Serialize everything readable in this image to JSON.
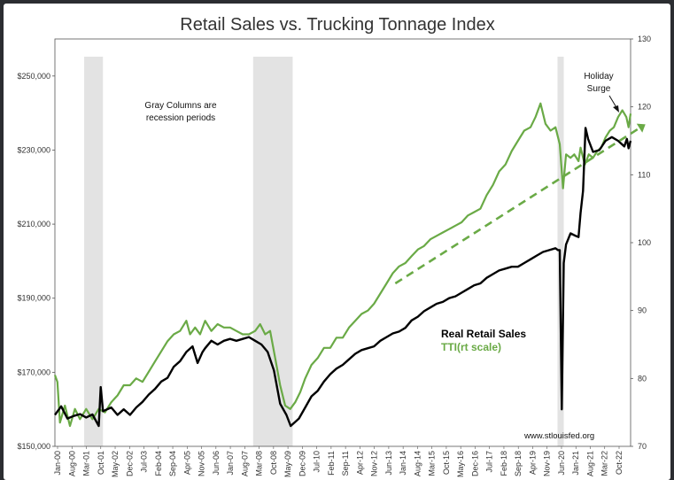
{
  "chart_data": {
    "type": "line",
    "title": "Retail Sales vs. Trucking Tonnage Index",
    "left_axis": {
      "ticks": [
        "$150,000",
        "$170,000",
        "$190,000",
        "$210,000",
        "$230,000",
        "$250,000"
      ],
      "range": [
        150000,
        260000
      ]
    },
    "right_axis": {
      "ticks": [
        "70",
        "80",
        "90",
        "100",
        "110",
        "120",
        "130"
      ],
      "range": [
        70,
        130
      ]
    },
    "x_ticks": [
      "Jan-00",
      "Aug-00",
      "Mar-01",
      "Oct-01",
      "May-02",
      "Dec-02",
      "Jul-03",
      "Feb-04",
      "Sep-04",
      "Apr-05",
      "Nov-05",
      "Jun-06",
      "Jan-07",
      "Aug-07",
      "Mar-08",
      "Oct-08",
      "May-09",
      "Dec-09",
      "Jul-10",
      "Feb-11",
      "Sep-11",
      "Apr-12",
      "Nov-12",
      "Jun-13",
      "Jan-14",
      "Aug-14",
      "Mar-15",
      "Oct-15",
      "May-16",
      "Dec-16",
      "Jul-17",
      "Feb-18",
      "Sep-18",
      "Apr-19",
      "Nov-19",
      "Jun-20",
      "Jan-21",
      "Aug-21",
      "Mar-22",
      "Oct-22"
    ],
    "x_range": [
      2000.0,
      2023.0
    ],
    "recessions": [
      [
        2001.17,
        2001.92
      ],
      [
        2007.92,
        2009.5
      ],
      [
        2020.08,
        2020.33
      ]
    ],
    "series": [
      {
        "name": "Real Retail Sales",
        "axis": "left",
        "color": "#000000",
        "points": [
          [
            2000.0,
            158500
          ],
          [
            2000.25,
            160800
          ],
          [
            2000.5,
            157500
          ],
          [
            2000.75,
            158200
          ],
          [
            2001.0,
            158700
          ],
          [
            2001.25,
            157800
          ],
          [
            2001.5,
            158600
          ],
          [
            2001.75,
            155500
          ],
          [
            2001.83,
            166000
          ],
          [
            2001.92,
            159500
          ],
          [
            2002.25,
            160500
          ],
          [
            2002.5,
            158500
          ],
          [
            2002.75,
            160000
          ],
          [
            2003.0,
            158500
          ],
          [
            2003.25,
            160500
          ],
          [
            2003.5,
            162000
          ],
          [
            2003.75,
            164000
          ],
          [
            2004.0,
            165500
          ],
          [
            2004.25,
            167500
          ],
          [
            2004.5,
            168500
          ],
          [
            2004.75,
            171500
          ],
          [
            2005.0,
            173000
          ],
          [
            2005.25,
            175500
          ],
          [
            2005.5,
            177000
          ],
          [
            2005.7,
            172500
          ],
          [
            2005.9,
            175500
          ],
          [
            2006.0,
            176500
          ],
          [
            2006.25,
            178500
          ],
          [
            2006.5,
            177500
          ],
          [
            2006.75,
            178500
          ],
          [
            2007.0,
            179000
          ],
          [
            2007.25,
            178500
          ],
          [
            2007.5,
            179000
          ],
          [
            2007.75,
            179500
          ],
          [
            2008.0,
            178500
          ],
          [
            2008.25,
            177500
          ],
          [
            2008.5,
            175500
          ],
          [
            2008.75,
            170500
          ],
          [
            2009.0,
            161500
          ],
          [
            2009.25,
            158500
          ],
          [
            2009.42,
            155500
          ],
          [
            2009.75,
            157500
          ],
          [
            2010.0,
            160500
          ],
          [
            2010.25,
            163500
          ],
          [
            2010.5,
            165000
          ],
          [
            2010.75,
            167500
          ],
          [
            2011.0,
            169500
          ],
          [
            2011.25,
            171000
          ],
          [
            2011.5,
            172000
          ],
          [
            2011.75,
            173500
          ],
          [
            2012.0,
            175000
          ],
          [
            2012.25,
            176000
          ],
          [
            2012.5,
            176500
          ],
          [
            2012.75,
            177000
          ],
          [
            2013.0,
            178500
          ],
          [
            2013.25,
            179500
          ],
          [
            2013.5,
            180500
          ],
          [
            2013.75,
            181000
          ],
          [
            2014.0,
            182000
          ],
          [
            2014.25,
            184000
          ],
          [
            2014.5,
            185000
          ],
          [
            2014.75,
            186500
          ],
          [
            2015.0,
            187500
          ],
          [
            2015.25,
            188500
          ],
          [
            2015.5,
            189000
          ],
          [
            2015.75,
            190000
          ],
          [
            2016.0,
            190500
          ],
          [
            2016.25,
            191500
          ],
          [
            2016.5,
            192500
          ],
          [
            2016.75,
            193500
          ],
          [
            2017.0,
            194000
          ],
          [
            2017.25,
            195500
          ],
          [
            2017.5,
            196500
          ],
          [
            2017.75,
            197500
          ],
          [
            2018.0,
            198000
          ],
          [
            2018.25,
            198500
          ],
          [
            2018.5,
            198500
          ],
          [
            2018.75,
            199500
          ],
          [
            2019.0,
            200500
          ],
          [
            2019.25,
            201500
          ],
          [
            2019.5,
            202500
          ],
          [
            2019.75,
            203000
          ],
          [
            2020.0,
            203500
          ],
          [
            2020.1,
            203000
          ],
          [
            2020.17,
            203000
          ],
          [
            2020.25,
            160000
          ],
          [
            2020.33,
            199500
          ],
          [
            2020.42,
            204500
          ],
          [
            2020.6,
            207500
          ],
          [
            2020.75,
            207000
          ],
          [
            2020.92,
            206500
          ],
          [
            2021.0,
            213000
          ],
          [
            2021.1,
            219000
          ],
          [
            2021.2,
            236000
          ],
          [
            2021.3,
            233000
          ],
          [
            2021.5,
            229500
          ],
          [
            2021.75,
            230000
          ],
          [
            2022.0,
            232500
          ],
          [
            2022.25,
            233500
          ],
          [
            2022.5,
            232500
          ],
          [
            2022.75,
            231000
          ],
          [
            2022.85,
            233000
          ],
          [
            2022.92,
            230500
          ],
          [
            2023.0,
            232500
          ]
        ]
      },
      {
        "name": "TTI(rt scale)",
        "axis": "right",
        "color": "#6aaa46",
        "points": [
          [
            2000.0,
            80.5
          ],
          [
            2000.1,
            79.5
          ],
          [
            2000.2,
            73.5
          ],
          [
            2000.4,
            76.0
          ],
          [
            2000.6,
            73.0
          ],
          [
            2000.8,
            75.5
          ],
          [
            2001.0,
            74.0
          ],
          [
            2001.25,
            75.5
          ],
          [
            2001.5,
            74.0
          ],
          [
            2001.75,
            75.5
          ],
          [
            2002.0,
            75.0
          ],
          [
            2002.25,
            76.5
          ],
          [
            2002.5,
            77.5
          ],
          [
            2002.75,
            79.0
          ],
          [
            2003.0,
            79.0
          ],
          [
            2003.25,
            80.0
          ],
          [
            2003.5,
            79.5
          ],
          [
            2003.75,
            81.0
          ],
          [
            2004.0,
            82.5
          ],
          [
            2004.25,
            84.0
          ],
          [
            2004.5,
            85.5
          ],
          [
            2004.75,
            86.5
          ],
          [
            2005.0,
            87.0
          ],
          [
            2005.25,
            88.5
          ],
          [
            2005.4,
            86.5
          ],
          [
            2005.6,
            87.5
          ],
          [
            2005.8,
            86.5
          ],
          [
            2006.0,
            88.5
          ],
          [
            2006.25,
            87.0
          ],
          [
            2006.5,
            88.0
          ],
          [
            2006.75,
            87.5
          ],
          [
            2007.0,
            87.5
          ],
          [
            2007.25,
            87.0
          ],
          [
            2007.5,
            86.5
          ],
          [
            2007.75,
            86.5
          ],
          [
            2008.0,
            87.0
          ],
          [
            2008.2,
            88.0
          ],
          [
            2008.4,
            86.5
          ],
          [
            2008.6,
            87.0
          ],
          [
            2008.8,
            83.0
          ],
          [
            2009.0,
            79.0
          ],
          [
            2009.2,
            76.0
          ],
          [
            2009.4,
            75.5
          ],
          [
            2009.6,
            76.5
          ],
          [
            2009.8,
            78.0
          ],
          [
            2010.0,
            80.0
          ],
          [
            2010.25,
            82.0
          ],
          [
            2010.5,
            83.0
          ],
          [
            2010.75,
            84.5
          ],
          [
            2011.0,
            84.5
          ],
          [
            2011.25,
            86.0
          ],
          [
            2011.5,
            86.0
          ],
          [
            2011.75,
            87.5
          ],
          [
            2012.0,
            88.5
          ],
          [
            2012.25,
            89.5
          ],
          [
            2012.5,
            90.0
          ],
          [
            2012.75,
            91.0
          ],
          [
            2013.0,
            92.5
          ],
          [
            2013.25,
            94.0
          ],
          [
            2013.5,
            95.5
          ],
          [
            2013.75,
            96.5
          ],
          [
            2014.0,
            97.0
          ],
          [
            2014.25,
            98.0
          ],
          [
            2014.5,
            99.0
          ],
          [
            2014.75,
            99.5
          ],
          [
            2015.0,
            100.5
          ],
          [
            2015.25,
            101.0
          ],
          [
            2015.5,
            101.5
          ],
          [
            2015.75,
            102.0
          ],
          [
            2016.0,
            102.5
          ],
          [
            2016.25,
            103.0
          ],
          [
            2016.5,
            104.0
          ],
          [
            2016.75,
            104.5
          ],
          [
            2017.0,
            105.0
          ],
          [
            2017.25,
            107.0
          ],
          [
            2017.5,
            108.5
          ],
          [
            2017.75,
            110.5
          ],
          [
            2018.0,
            111.5
          ],
          [
            2018.25,
            113.5
          ],
          [
            2018.5,
            115.0
          ],
          [
            2018.75,
            116.5
          ],
          [
            2019.0,
            117.0
          ],
          [
            2019.2,
            118.5
          ],
          [
            2019.4,
            120.5
          ],
          [
            2019.6,
            117.5
          ],
          [
            2019.8,
            116.5
          ],
          [
            2020.0,
            117.0
          ],
          [
            2020.17,
            114.5
          ],
          [
            2020.3,
            108.0
          ],
          [
            2020.42,
            113.0
          ],
          [
            2020.6,
            112.5
          ],
          [
            2020.75,
            113.0
          ],
          [
            2020.92,
            112.0
          ],
          [
            2021.0,
            114.0
          ],
          [
            2021.17,
            111.5
          ],
          [
            2021.33,
            113.0
          ],
          [
            2021.5,
            112.5
          ],
          [
            2021.67,
            113.5
          ],
          [
            2021.83,
            114.0
          ],
          [
            2022.0,
            115.5
          ],
          [
            2022.17,
            116.5
          ],
          [
            2022.33,
            117.0
          ],
          [
            2022.5,
            118.5
          ],
          [
            2022.67,
            119.5
          ],
          [
            2022.83,
            118.5
          ],
          [
            2022.92,
            117.0
          ],
          [
            2023.0,
            119.0
          ]
        ]
      }
    ],
    "trendline": {
      "axis": "left",
      "color": "#6aaa46",
      "points": [
        [
          2013.6,
          194000
        ],
        [
          2023.0,
          234500
        ]
      ]
    },
    "annotations": {
      "recession_note": [
        "Gray Columns are",
        "recession periods"
      ],
      "holiday_note": [
        "Holiday",
        "Surge"
      ],
      "legend_black": "Real Retail Sales",
      "legend_green": "TTI(rt scale)",
      "source": "www.stlouisfed.org"
    }
  }
}
